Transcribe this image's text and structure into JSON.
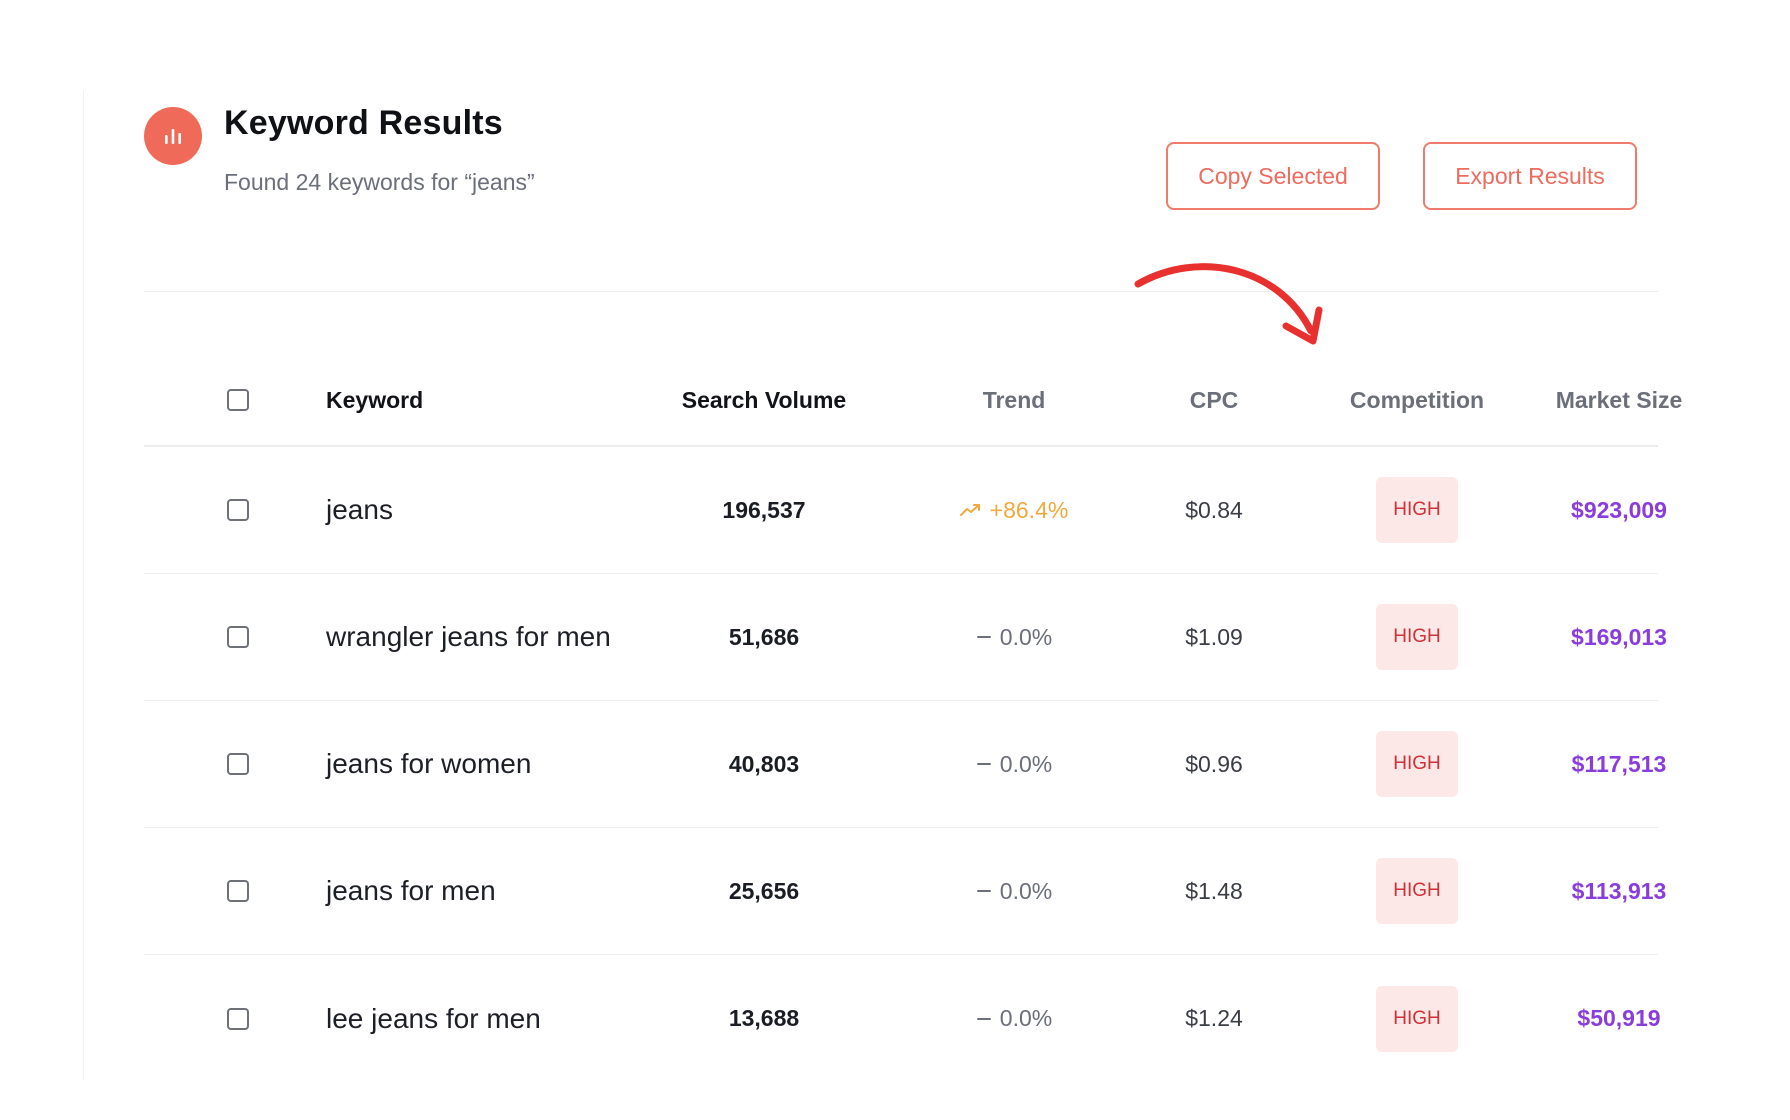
{
  "header": {
    "title": "Keyword Results",
    "subtitle": "Found 24 keywords for “jeans”",
    "logo_icon": "bar-chart-icon"
  },
  "actions": {
    "copy_label": "Copy Selected",
    "export_label": "Export Results"
  },
  "table": {
    "columns": {
      "keyword": "Keyword",
      "search_volume": "Search Volume",
      "trend": "Trend",
      "cpc": "CPC",
      "competition": "Competition",
      "market_size": "Market Size"
    },
    "rows": [
      {
        "keyword": "jeans",
        "volume": "196,537",
        "trend": "+86.4%",
        "trend_dir": "up",
        "cpc": "$0.84",
        "competition": "HIGH",
        "market": "$923,009"
      },
      {
        "keyword": "wrangler jeans for men",
        "volume": "51,686",
        "trend": "0.0%",
        "trend_dir": "flat",
        "cpc": "$1.09",
        "competition": "HIGH",
        "market": "$169,013"
      },
      {
        "keyword": "jeans for women",
        "volume": "40,803",
        "trend": "0.0%",
        "trend_dir": "flat",
        "cpc": "$0.96",
        "competition": "HIGH",
        "market": "$117,513"
      },
      {
        "keyword": "jeans for men",
        "volume": "25,656",
        "trend": "0.0%",
        "trend_dir": "flat",
        "cpc": "$1.48",
        "competition": "HIGH",
        "market": "$113,913"
      },
      {
        "keyword": "lee jeans for men",
        "volume": "13,688",
        "trend": "0.0%",
        "trend_dir": "flat",
        "cpc": "$1.24",
        "competition": "HIGH",
        "market": "$50,919"
      }
    ]
  },
  "colors": {
    "accent": "#f06a5a",
    "trend_up": "#f0a93c",
    "competition_high": "#cf3035",
    "market": "#8a3dde",
    "annotation_arrow": "#e8312e"
  }
}
